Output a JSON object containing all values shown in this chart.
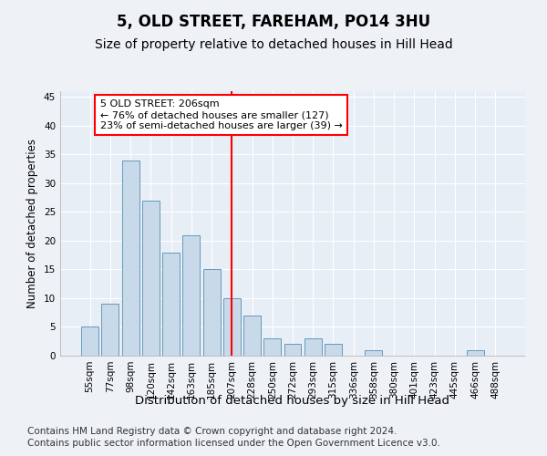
{
  "title1": "5, OLD STREET, FAREHAM, PO14 3HU",
  "title2": "Size of property relative to detached houses in Hill Head",
  "xlabel": "Distribution of detached houses by size in Hill Head",
  "ylabel": "Number of detached properties",
  "categories": [
    "55sqm",
    "77sqm",
    "98sqm",
    "120sqm",
    "142sqm",
    "163sqm",
    "185sqm",
    "207sqm",
    "228sqm",
    "250sqm",
    "272sqm",
    "293sqm",
    "315sqm",
    "336sqm",
    "358sqm",
    "380sqm",
    "401sqm",
    "423sqm",
    "445sqm",
    "466sqm",
    "488sqm"
  ],
  "values": [
    5,
    9,
    34,
    27,
    18,
    21,
    15,
    10,
    7,
    3,
    2,
    3,
    2,
    0,
    1,
    0,
    0,
    0,
    0,
    1,
    0
  ],
  "bar_color": "#c8d9ea",
  "bar_edge_color": "#6699bb",
  "vline_x_idx": 7,
  "annotation_text": "5 OLD STREET: 206sqm\n← 76% of detached houses are smaller (127)\n23% of semi-detached houses are larger (39) →",
  "annotation_box_color": "white",
  "annotation_box_edge_color": "red",
  "vline_color": "red",
  "ylim": [
    0,
    46
  ],
  "yticks": [
    0,
    5,
    10,
    15,
    20,
    25,
    30,
    35,
    40,
    45
  ],
  "footer1": "Contains HM Land Registry data © Crown copyright and database right 2024.",
  "footer2": "Contains public sector information licensed under the Open Government Licence v3.0.",
  "bg_color": "#eef2f7",
  "plot_bg_color": "#e8eef6",
  "grid_color": "#ffffff",
  "title1_fontsize": 12,
  "title2_fontsize": 10,
  "xlabel_fontsize": 9.5,
  "ylabel_fontsize": 8.5,
  "tick_fontsize": 7.5,
  "footer_fontsize": 7.5,
  "annot_fontsize": 8
}
